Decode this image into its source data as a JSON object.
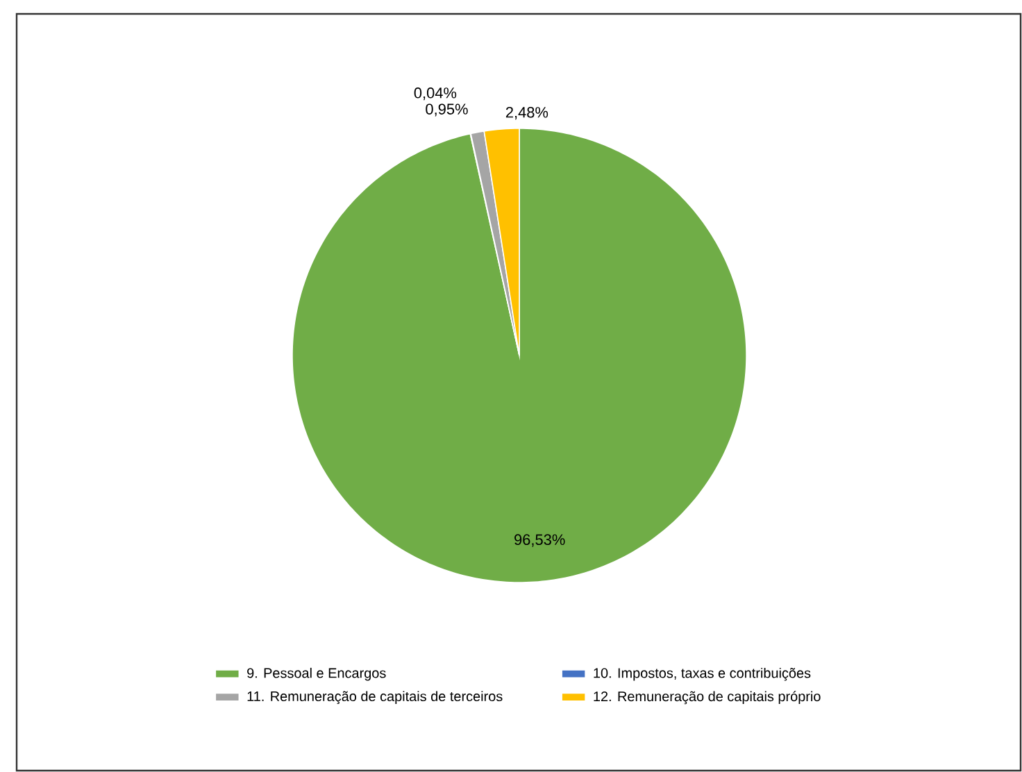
{
  "chart_data": {
    "type": "pie",
    "categories": [
      "9. Pessoal e Encargos",
      "10. Impostos, taxas e contribuições",
      "11. Remuneração de capitais de terceiros",
      "12. Remuneração de capitais próprio"
    ],
    "values": [
      96.53,
      0.04,
      0.95,
      2.48
    ],
    "colors": [
      "#70ad47",
      "#4472c4",
      "#a5a5a5",
      "#ffc000"
    ],
    "value_labels": [
      "96,53%",
      "0,04%",
      "0,95%",
      "2,48%"
    ],
    "legend": "bottom"
  }
}
